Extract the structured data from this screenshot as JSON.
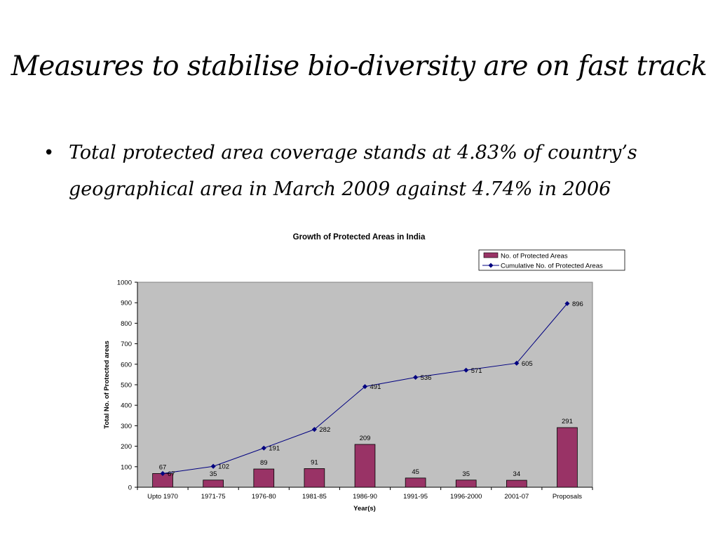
{
  "slide": {
    "title": "Measures to stabilise bio-diversity are on fast track",
    "bullet": "Total protected area coverage stands at 4.83% of country’s geographical area in March 2009 against 4.74% in 2006"
  },
  "chart_data": {
    "type": "bar",
    "title": "Growth of Protected Areas in India",
    "xlabel": "Year(s)",
    "ylabel": "Total No. of Protected areas",
    "ylim": [
      0,
      1000
    ],
    "yticks": [
      0,
      100,
      200,
      300,
      400,
      500,
      600,
      700,
      800,
      900,
      1000
    ],
    "grid": false,
    "legend_position": "top-right",
    "categories": [
      "Upto 1970",
      "1971-75",
      "1976-80",
      "1981-85",
      "1986-90",
      "1991-95",
      "1996-2000",
      "2001-07",
      "Proposals"
    ],
    "series": [
      {
        "name": "No. of Protected Areas",
        "kind": "bar",
        "color": "#993366",
        "values": [
          67,
          35,
          89,
          91,
          209,
          45,
          35,
          34,
          291
        ]
      },
      {
        "name": "Cumulative No. of Protected Areas",
        "kind": "line",
        "color": "#000080",
        "values": [
          67,
          102,
          191,
          282,
          491,
          536,
          571,
          605,
          896
        ]
      }
    ],
    "plot_background": "#c0c0c0"
  }
}
